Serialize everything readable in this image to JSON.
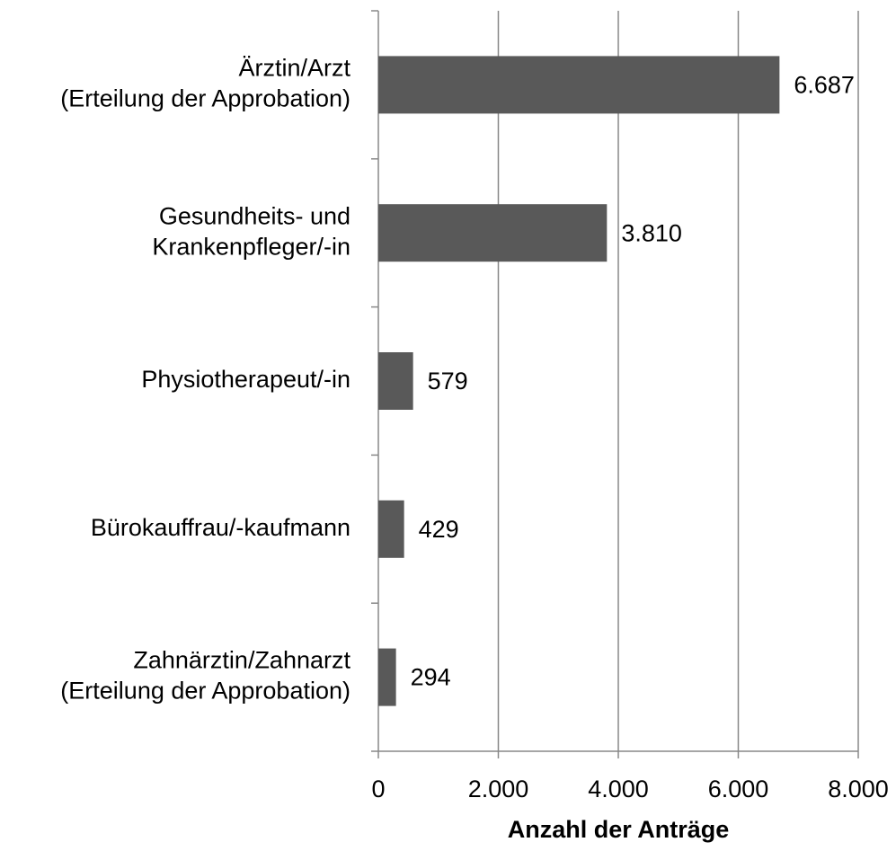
{
  "chart_data": {
    "type": "bar",
    "orientation": "horizontal",
    "categories": [
      [
        "Ärztin/Arzt",
        "(Erteilung der Approbation)"
      ],
      [
        "Gesundheits- und",
        "Krankenpfleger/-in"
      ],
      [
        "Physiotherapeut/-in"
      ],
      [
        "Bürokauffrau/-kaufmann"
      ],
      [
        "Zahnärztin/Zahnarzt",
        "(Erteilung der Approbation)"
      ]
    ],
    "values": [
      6687,
      3810,
      579,
      429,
      294
    ],
    "value_labels": [
      "6.687",
      "3.810",
      "579",
      "429",
      "294"
    ],
    "color": "#595959",
    "x_label": "Anzahl der Anträge",
    "xlim": [
      0,
      8000
    ],
    "xticks": [
      0,
      {
        "value": 2000,
        "label": "2.000"
      },
      {
        "value": 4000,
        "label": "4.000"
      },
      {
        "value": 6000,
        "label": "6.000"
      },
      {
        "value": 8000,
        "label": "8.000"
      }
    ],
    "grid": true
  }
}
